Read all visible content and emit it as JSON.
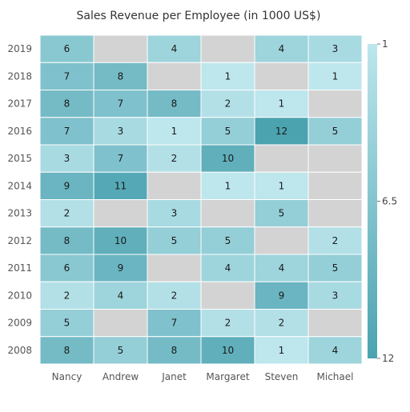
{
  "chart_data": {
    "type": "heatmap",
    "title": "Sales Revenue per Employee (in 1000 US$)",
    "x_categories": [
      "Nancy",
      "Andrew",
      "Janet",
      "Margaret",
      "Steven",
      "Michael"
    ],
    "y_categories": [
      "2019",
      "2018",
      "2017",
      "2016",
      "2015",
      "2014",
      "2013",
      "2012",
      "2011",
      "2010",
      "2009",
      "2008"
    ],
    "values": [
      [
        6,
        null,
        4,
        null,
        4,
        3
      ],
      [
        7,
        8,
        null,
        1,
        null,
        1
      ],
      [
        8,
        7,
        8,
        2,
        1,
        null
      ],
      [
        7,
        3,
        1,
        5,
        12,
        5
      ],
      [
        3,
        7,
        2,
        10,
        null,
        null
      ],
      [
        9,
        11,
        null,
        1,
        1,
        null
      ],
      [
        2,
        null,
        3,
        null,
        5,
        null
      ],
      [
        8,
        10,
        5,
        5,
        null,
        2
      ],
      [
        6,
        9,
        null,
        4,
        4,
        5
      ],
      [
        2,
        4,
        2,
        null,
        9,
        3
      ],
      [
        5,
        null,
        7,
        2,
        2,
        null
      ],
      [
        8,
        5,
        8,
        10,
        1,
        4
      ]
    ],
    "color_scale": {
      "min": 1,
      "max": 12,
      "tick_labels": [
        "1",
        "6.5",
        "12"
      ],
      "min_color": "#BDE6ED",
      "max_color": "#4BA3B0",
      "empty_color": "#D3D3D3",
      "placement": "right"
    }
  }
}
